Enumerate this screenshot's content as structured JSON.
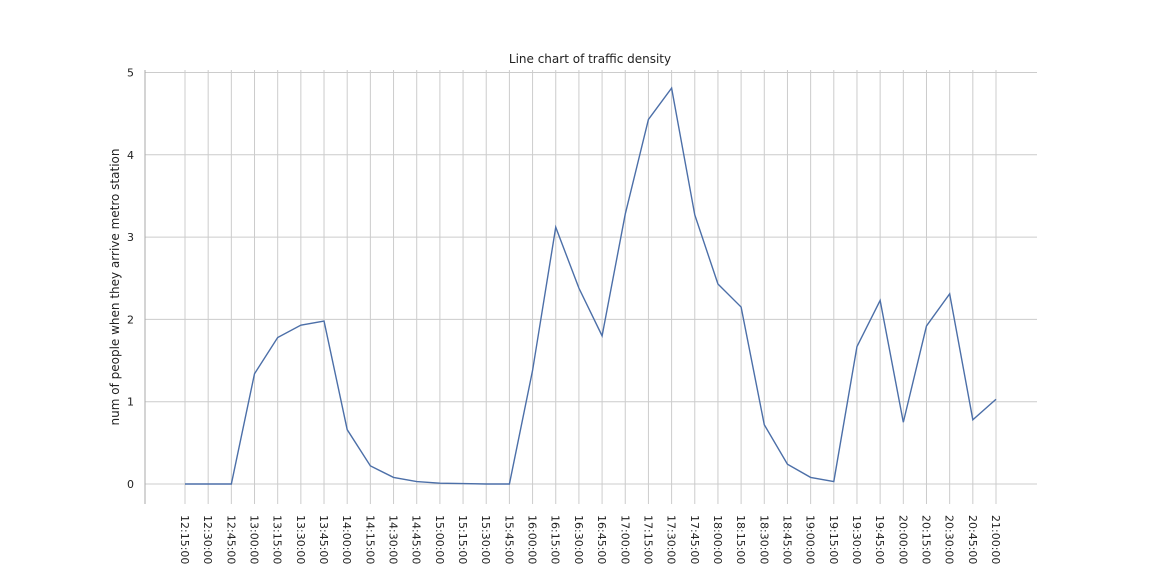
{
  "chart_data": {
    "type": "line",
    "title": "Line chart of traffic density",
    "xlabel": "",
    "ylabel": "num of people when they arrive metro station",
    "categories": [
      "12:15:00",
      "12:30:00",
      "12:45:00",
      "13:00:00",
      "13:15:00",
      "13:30:00",
      "13:45:00",
      "14:00:00",
      "14:15:00",
      "14:30:00",
      "14:45:00",
      "15:00:00",
      "15:15:00",
      "15:30:00",
      "15:45:00",
      "16:00:00",
      "16:15:00",
      "16:30:00",
      "16:45:00",
      "17:00:00",
      "17:15:00",
      "17:30:00",
      "17:45:00",
      "18:00:00",
      "18:15:00",
      "18:30:00",
      "18:45:00",
      "19:00:00",
      "19:15:00",
      "19:30:00",
      "19:45:00",
      "20:00:00",
      "20:15:00",
      "20:30:00",
      "20:45:00",
      "21:00:00"
    ],
    "series": [
      {
        "values": [
          0,
          0,
          0,
          1.34,
          1.78,
          1.93,
          1.98,
          0.66,
          0.22,
          0.08,
          0.03,
          0.01,
          0.005,
          0,
          0,
          1.38,
          3.12,
          2.38,
          1.8,
          3.28,
          4.43,
          4.81,
          3.27,
          2.43,
          2.15,
          0.72,
          0.24,
          0.08,
          0.03,
          1.67,
          2.23,
          0.75,
          1.92,
          2.31,
          0.78,
          1.03
        ],
        "color": "#4c6fa8"
      }
    ],
    "ylim": [
      -0.25,
      5.05
    ],
    "yticks": [
      "0",
      "1",
      "2",
      "3",
      "4",
      "5"
    ],
    "grid": true,
    "legend": "none"
  }
}
